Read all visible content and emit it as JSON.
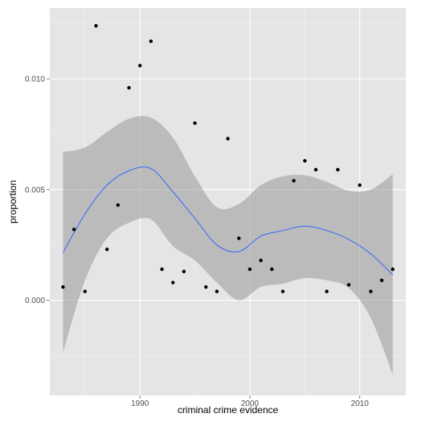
{
  "chart_data": {
    "type": "scatter",
    "xlabel": "criminal crime evidence",
    "ylabel": "proportion",
    "xlim": [
      1981.8,
      2014.2
    ],
    "ylim": [
      -0.0043,
      0.0132
    ],
    "x_ticks": [
      1990,
      2000,
      2010
    ],
    "x_tick_labels": [
      "1990",
      "2000",
      "2010"
    ],
    "y_ticks": [
      0.0,
      0.005,
      0.01
    ],
    "y_tick_labels": [
      "0.000",
      "0.005",
      "0.010"
    ],
    "grid": true,
    "points": [
      {
        "x": 1983,
        "y": 0.0006
      },
      {
        "x": 1984,
        "y": 0.0032
      },
      {
        "x": 1985,
        "y": 0.0004
      },
      {
        "x": 1986,
        "y": 0.0124
      },
      {
        "x": 1987,
        "y": 0.0023
      },
      {
        "x": 1988,
        "y": 0.0043
      },
      {
        "x": 1989,
        "y": 0.0096
      },
      {
        "x": 1990,
        "y": 0.0106
      },
      {
        "x": 1991,
        "y": 0.0117
      },
      {
        "x": 1992,
        "y": 0.0014
      },
      {
        "x": 1993,
        "y": 0.0008
      },
      {
        "x": 1994,
        "y": 0.0013
      },
      {
        "x": 1995,
        "y": 0.008
      },
      {
        "x": 1996,
        "y": 0.0006
      },
      {
        "x": 1997,
        "y": 0.0004
      },
      {
        "x": 1998,
        "y": 0.0073
      },
      {
        "x": 1999,
        "y": 0.0028
      },
      {
        "x": 2000,
        "y": 0.0014
      },
      {
        "x": 2001,
        "y": 0.0018
      },
      {
        "x": 2002,
        "y": 0.0014
      },
      {
        "x": 2003,
        "y": 0.0004
      },
      {
        "x": 2004,
        "y": 0.0054
      },
      {
        "x": 2005,
        "y": 0.0063
      },
      {
        "x": 2006,
        "y": 0.0059
      },
      {
        "x": 2007,
        "y": 0.0004
      },
      {
        "x": 2008,
        "y": 0.0059
      },
      {
        "x": 2009,
        "y": 0.0007
      },
      {
        "x": 2010,
        "y": 0.0052
      },
      {
        "x": 2011,
        "y": 0.0004
      },
      {
        "x": 2012,
        "y": 0.0009
      },
      {
        "x": 2013,
        "y": 0.0014
      }
    ],
    "smooth": {
      "x": [
        1983,
        1985,
        1987,
        1989,
        1991,
        1993,
        1995,
        1997,
        1999,
        2001,
        2003,
        2005,
        2007,
        2009,
        2011,
        2013
      ],
      "fit": [
        0.00215,
        0.0039,
        0.0052,
        0.00585,
        0.00595,
        0.0049,
        0.0037,
        0.0025,
        0.0022,
        0.0029,
        0.00315,
        0.00335,
        0.00315,
        0.00275,
        0.0021,
        0.00115
      ],
      "upper": [
        0.0067,
        0.0069,
        0.0076,
        0.0082,
        0.00825,
        0.00735,
        0.0056,
        0.0042,
        0.00435,
        0.0052,
        0.0056,
        0.00565,
        0.00535,
        0.00495,
        0.005,
        0.0057
      ],
      "lower": [
        -0.00235,
        0.0009,
        0.0028,
        0.0035,
        0.00365,
        0.00245,
        0.0018,
        0.0008,
        0.0,
        0.0006,
        0.00075,
        0.001,
        0.0009,
        0.00055,
        -0.0008,
        -0.00335
      ]
    },
    "colors": {
      "panel_bg": "#e5e5e5",
      "grid": "#ffffff",
      "points": "#000000",
      "fit_line": "#3366ff",
      "ribbon": "#999999"
    }
  }
}
